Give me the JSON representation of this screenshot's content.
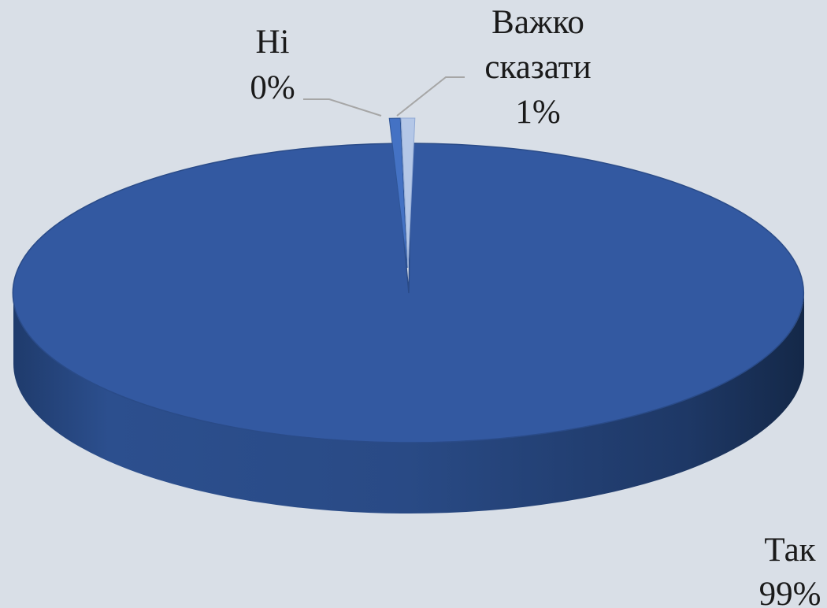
{
  "chart_data": {
    "type": "pie",
    "style": "3d",
    "slices": [
      {
        "label": "Так",
        "value": 99,
        "value_label": "99%",
        "color": "#2f5597"
      },
      {
        "label": "Ні",
        "value": 0,
        "value_label": "0%",
        "color": "#4472c4"
      },
      {
        "label": "Важко сказати",
        "value": 1,
        "value_label": "1%",
        "color": "#b4c7e7"
      }
    ],
    "legend": "none",
    "background_color": "#d9dfe7"
  }
}
